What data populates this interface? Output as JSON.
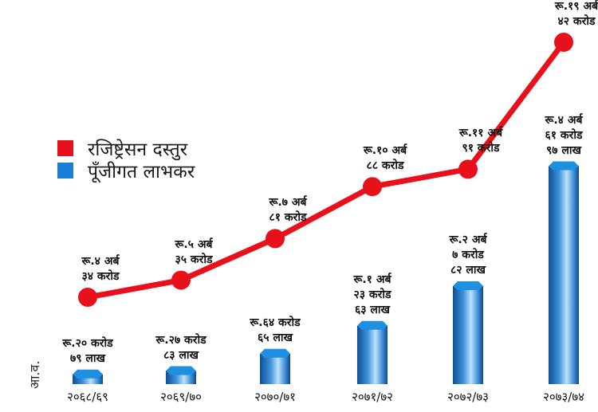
{
  "chart_data": {
    "type": "bar",
    "ylabel": "आ.व.",
    "categories": [
      "२०६८/६९",
      "२०६९/७०",
      "२०७०/७१",
      "२०७१/७२",
      "२०७२/७३",
      "२०७३/७४"
    ],
    "series": [
      {
        "name": "रजिष्ट्रेसन दस्तुर",
        "type": "line",
        "color": "#e8101a",
        "unit": "करोड",
        "values": [
          434,
          535,
          781,
          1088,
          1191,
          1942
        ],
        "labels": [
          [
            "रू.४ अर्ब",
            "३४ करोड"
          ],
          [
            "रू.५ अर्ब",
            "३५ करोड"
          ],
          [
            "रू.७ अर्ब",
            "८१ करोड"
          ],
          [
            "रू.१० अर्ब",
            "८८ करोड"
          ],
          [
            "रू.११ अर्ब",
            "९१ करोड"
          ],
          [
            "रू.१९ अर्ब",
            "४२ करोड"
          ]
        ]
      },
      {
        "name": "पूँजीगत लाभकर",
        "type": "bar",
        "color": "#1a7fd4",
        "unit": "करोड",
        "values": [
          20.79,
          27.83,
          64.65,
          123.63,
          207.82,
          461.97
        ],
        "labels": [
          [
            "रू.२० करोड",
            "७९ लाख"
          ],
          [
            "रू.२७ करोड",
            "८३ लाख"
          ],
          [
            "रू.६४ करोड",
            "६५ लाख"
          ],
          [
            "रू.१ अर्ब",
            "२३ करोड",
            "६३ लाख"
          ],
          [
            "रू.२ अर्ब",
            "७ करोड",
            "८२ लाख"
          ],
          [
            "रू.४ अर्ब",
            "६१ करोड",
            "९७ लाख"
          ]
        ]
      }
    ]
  }
}
